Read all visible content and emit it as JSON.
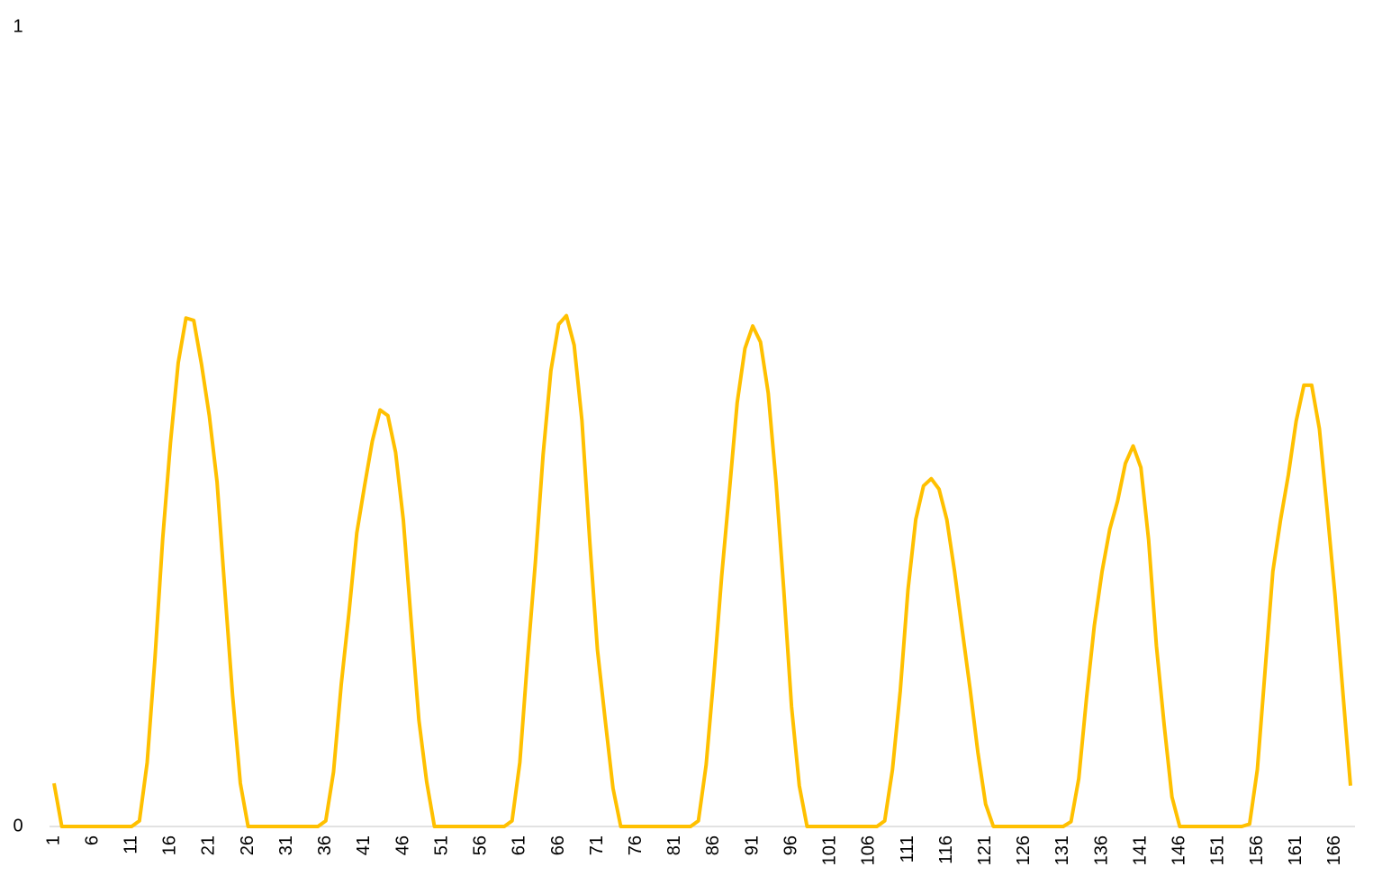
{
  "chart_data": {
    "type": "line",
    "color": "#FFC000",
    "ylim": [
      0,
      1
    ],
    "yticks": [
      0,
      1
    ],
    "grid": false,
    "categories": [
      "1",
      null,
      null,
      null,
      null,
      "6",
      null,
      null,
      null,
      null,
      "11",
      null,
      null,
      null,
      null,
      "16",
      null,
      null,
      null,
      null,
      "21",
      null,
      null,
      null,
      null,
      "26",
      null,
      null,
      null,
      null,
      "31",
      null,
      null,
      null,
      null,
      "36",
      null,
      null,
      null,
      null,
      "41",
      null,
      null,
      null,
      null,
      "46",
      null,
      null,
      null,
      null,
      "51",
      null,
      null,
      null,
      null,
      "56",
      null,
      null,
      null,
      null,
      "61",
      null,
      null,
      null,
      null,
      "66",
      null,
      null,
      null,
      null,
      "71",
      null,
      null,
      null,
      null,
      "76",
      null,
      null,
      null,
      null,
      "81",
      null,
      null,
      null,
      null,
      "86",
      null,
      null,
      null,
      null,
      "91",
      null,
      null,
      null,
      null,
      "96",
      null,
      null,
      null,
      null,
      "101",
      null,
      null,
      null,
      null,
      "106",
      null,
      null,
      null,
      null,
      "111",
      null,
      null,
      null,
      null,
      "116",
      null,
      null,
      null,
      null,
      "121",
      null,
      null,
      null,
      null,
      "126",
      null,
      null,
      null,
      null,
      "131",
      null,
      null,
      null,
      null,
      "136",
      null,
      null,
      null,
      null,
      "141",
      null,
      null,
      null,
      null,
      "146",
      null,
      null,
      null,
      null,
      "151",
      null,
      null,
      null,
      null,
      "156",
      null,
      null,
      null,
      null,
      "161",
      null,
      null,
      null,
      null,
      "166",
      null,
      null
    ],
    "values": [
      0.054,
      0,
      0,
      0,
      0,
      0,
      0,
      0,
      0,
      0,
      0,
      0.007,
      0.08,
      0.21,
      0.36,
      0.48,
      0.58,
      0.636,
      0.633,
      0.578,
      0.514,
      0.431,
      0.296,
      0.164,
      0.054,
      0,
      0,
      0,
      0,
      0,
      0,
      0,
      0,
      0,
      0,
      0.007,
      0.068,
      0.178,
      0.268,
      0.367,
      0.426,
      0.482,
      0.521,
      0.514,
      0.468,
      0.383,
      0.257,
      0.133,
      0.056,
      0,
      0,
      0,
      0,
      0,
      0,
      0,
      0,
      0,
      0,
      0.007,
      0.08,
      0.21,
      0.33,
      0.465,
      0.57,
      0.628,
      0.639,
      0.602,
      0.508,
      0.358,
      0.221,
      0.133,
      0.048,
      0,
      0,
      0,
      0,
      0,
      0,
      0,
      0,
      0,
      0,
      0.007,
      0.077,
      0.189,
      0.313,
      0.42,
      0.53,
      0.598,
      0.626,
      0.606,
      0.542,
      0.431,
      0.296,
      0.15,
      0.051,
      0,
      0,
      0,
      0,
      0,
      0,
      0,
      0,
      0,
      0,
      0.007,
      0.071,
      0.169,
      0.296,
      0.384,
      0.426,
      0.435,
      0.422,
      0.384,
      0.319,
      0.245,
      0.172,
      0.093,
      0.028,
      0,
      0,
      0,
      0,
      0,
      0,
      0,
      0,
      0,
      0,
      0.006,
      0.06,
      0.161,
      0.251,
      0.319,
      0.372,
      0.407,
      0.454,
      0.476,
      0.449,
      0.358,
      0.226,
      0.127,
      0.037,
      0,
      0,
      0,
      0,
      0,
      0,
      0,
      0,
      0,
      0.003,
      0.071,
      0.195,
      0.319,
      0.384,
      0.44,
      0.507,
      0.552,
      0.552,
      0.497,
      0.395,
      0.29,
      0.17,
      0.051
    ]
  }
}
